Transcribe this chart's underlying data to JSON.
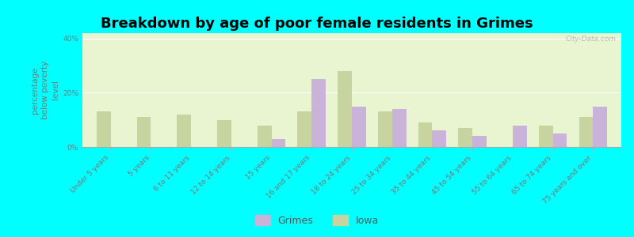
{
  "title": "Breakdown by age of poor female residents in Grimes",
  "ylabel": "percentage\nbelow poverty\nlevel",
  "categories": [
    "Under 5 years",
    "5 years",
    "6 to 11 years",
    "12 to 14 years",
    "15 years",
    "16 and 17 years",
    "18 to 24 years",
    "25 to 34 years",
    "35 to 44 years",
    "45 to 54 years",
    "55 to 64 years",
    "65 to 74 years",
    "75 years and over"
  ],
  "grimes_values": [
    0,
    0,
    0,
    0,
    3.0,
    25.0,
    15.0,
    14.0,
    6.0,
    4.0,
    8.0,
    5.0,
    15.0
  ],
  "iowa_values": [
    13.0,
    11.0,
    12.0,
    10.0,
    8.0,
    13.0,
    28.0,
    13.0,
    9.0,
    7.0,
    0,
    8.0,
    11.0
  ],
  "grimes_color": "#c9b3d9",
  "iowa_color": "#c8d4a0",
  "background_color": "#e8f5d0",
  "outer_background": "#00ffff",
  "ylim": [
    0,
    42
  ],
  "yticks": [
    0,
    20,
    40
  ],
  "ytick_labels": [
    "0%",
    "20%",
    "40%"
  ],
  "bar_width": 0.35,
  "title_fontsize": 13,
  "axis_label_fontsize": 7.5,
  "tick_fontsize": 6.5,
  "legend_fontsize": 9,
  "watermark": "City-Data.com"
}
